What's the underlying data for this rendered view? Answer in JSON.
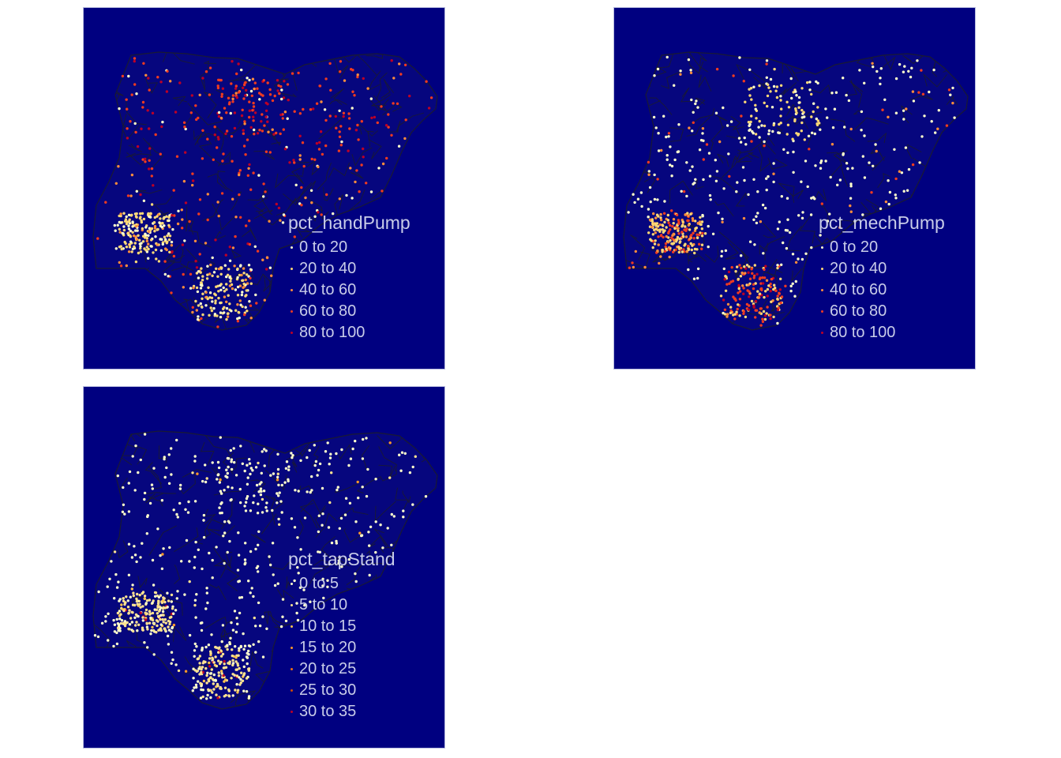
{
  "colors": {
    "background": "#000080",
    "region_fill": "#06067e",
    "region_border": "#1a1a33",
    "legend_text": "#c8cce8",
    "panel_border": "#b8bce0"
  },
  "panels": [
    {
      "legend_title": "pct_handPump",
      "legend_items": [
        {
          "label": "0 to 20",
          "color": "#ffffcc"
        },
        {
          "label": "20 to 40",
          "color": "#fed976"
        },
        {
          "label": "40 to 60",
          "color": "#fd8d3c"
        },
        {
          "label": "60 to 80",
          "color": "#f03b20"
        },
        {
          "label": "80 to 100",
          "color": "#bd0026"
        }
      ]
    },
    {
      "legend_title": "pct_mechPump",
      "legend_items": [
        {
          "label": "0 to 20",
          "color": "#ffffcc"
        },
        {
          "label": "20 to 40",
          "color": "#fed976"
        },
        {
          "label": "40 to 60",
          "color": "#fd8d3c"
        },
        {
          "label": "60 to 80",
          "color": "#f03b20"
        },
        {
          "label": "80 to 100",
          "color": "#bd0026"
        }
      ]
    },
    {
      "legend_title": "pct_tapStand",
      "legend_items": [
        {
          "label": "0 to 5",
          "color": "#ffffcc"
        },
        {
          "label": "5 to 10",
          "color": "#fee391"
        },
        {
          "label": "10 to 15",
          "color": "#fec44f"
        },
        {
          "label": "15 to 20",
          "color": "#fe9929"
        },
        {
          "label": "20 to 25",
          "color": "#ec7014"
        },
        {
          "label": "25 to 30",
          "color": "#cc4c02"
        },
        {
          "label": "30 to 35",
          "color": "#bd0026"
        }
      ]
    }
  ]
}
